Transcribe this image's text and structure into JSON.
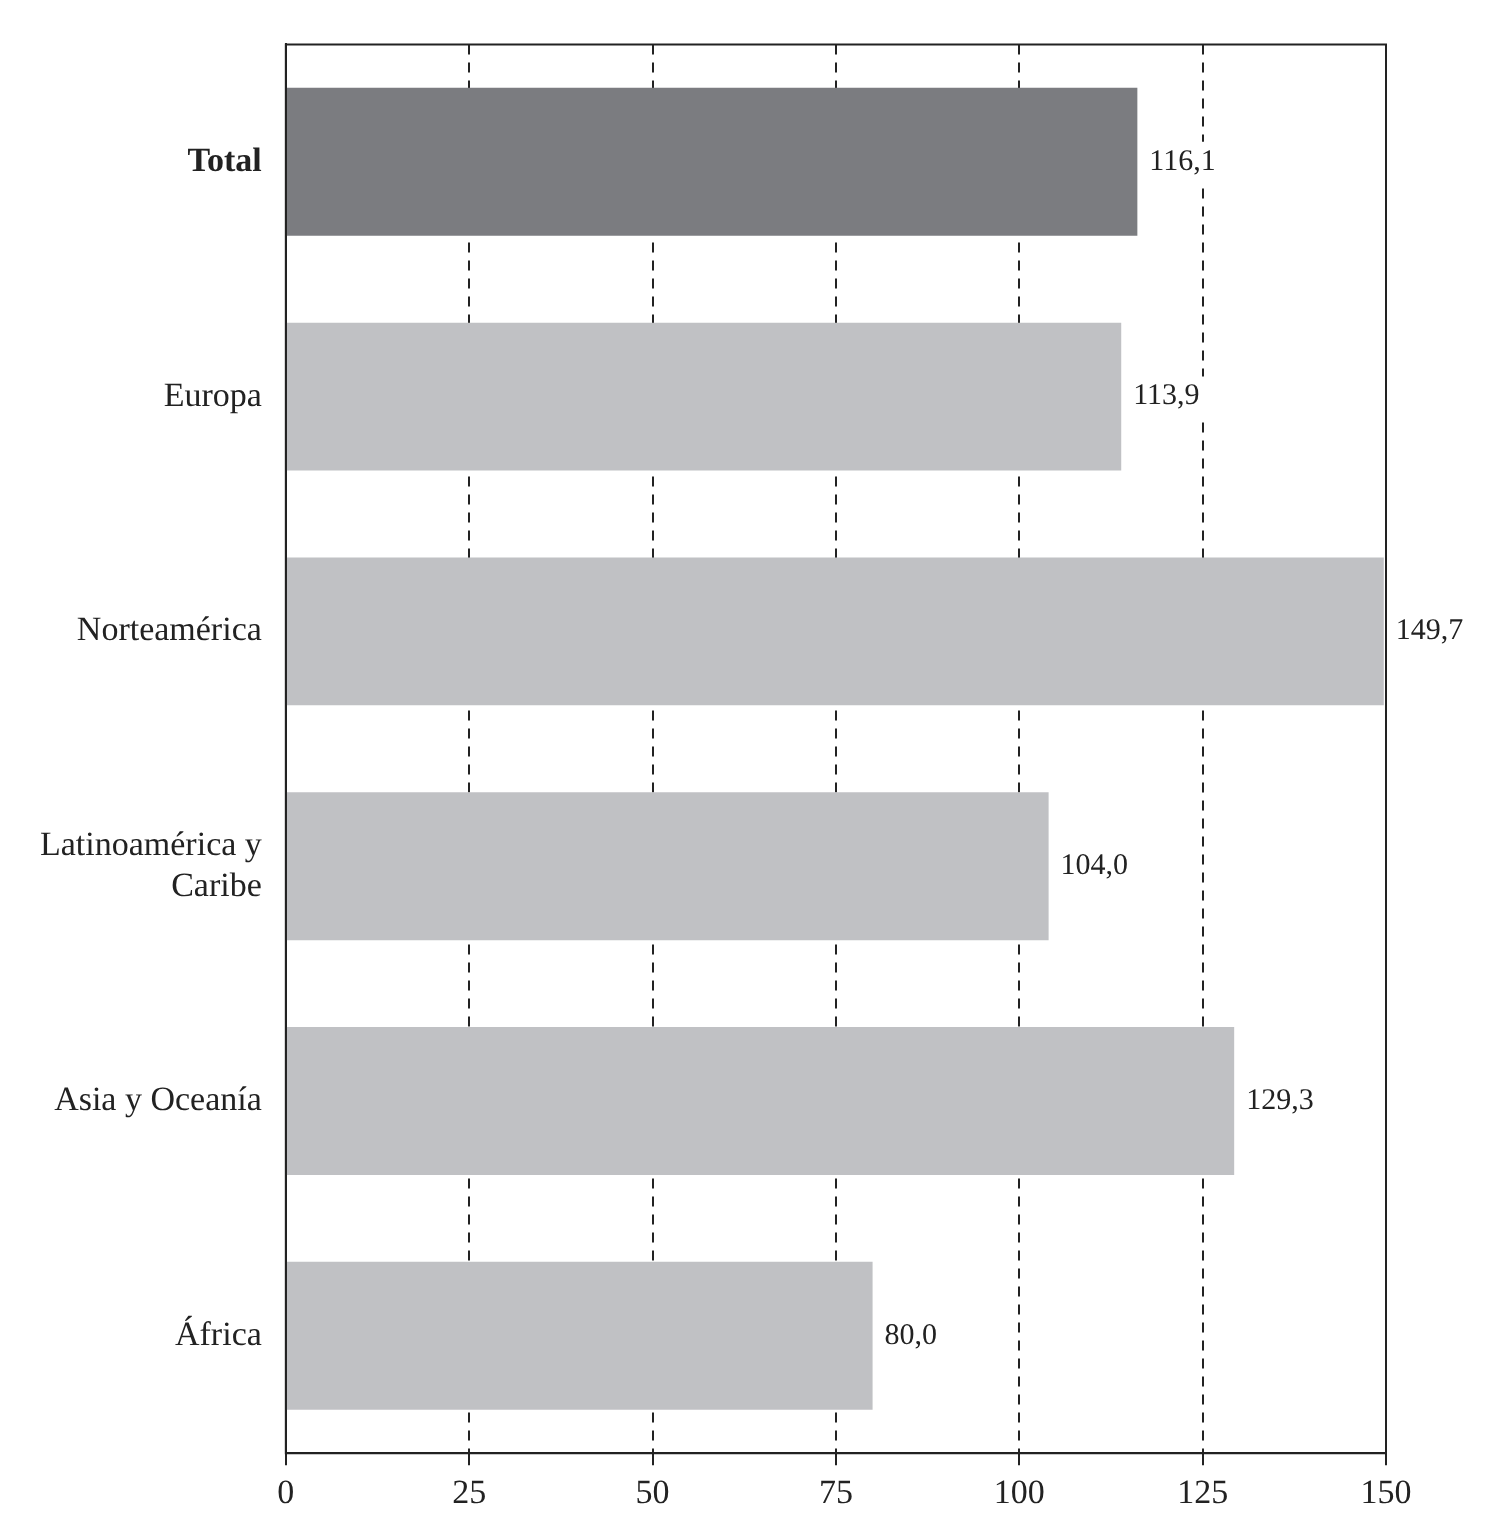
{
  "chart_data": {
    "type": "bar",
    "orientation": "horizontal",
    "categories": [
      "Total",
      "Europa",
      "Norteamérica",
      "Latinoamérica y Caribe",
      "Asia y Oceanía",
      "África"
    ],
    "values": [
      116.1,
      113.9,
      149.7,
      104.0,
      129.3,
      80.0
    ],
    "colors": [
      "#7b7c80",
      "#c0c1c4",
      "#c0c1c4",
      "#c0c1c4",
      "#c0c1c4",
      "#c0c1c4"
    ],
    "value_labels": [
      "116,1",
      "113,9",
      "149,7",
      "104,0",
      "129,3",
      "80,0"
    ],
    "xlim": [
      0,
      150
    ],
    "xticks": [
      0,
      25,
      50,
      75,
      100,
      125,
      150
    ],
    "grid": "x",
    "legend": false
  }
}
